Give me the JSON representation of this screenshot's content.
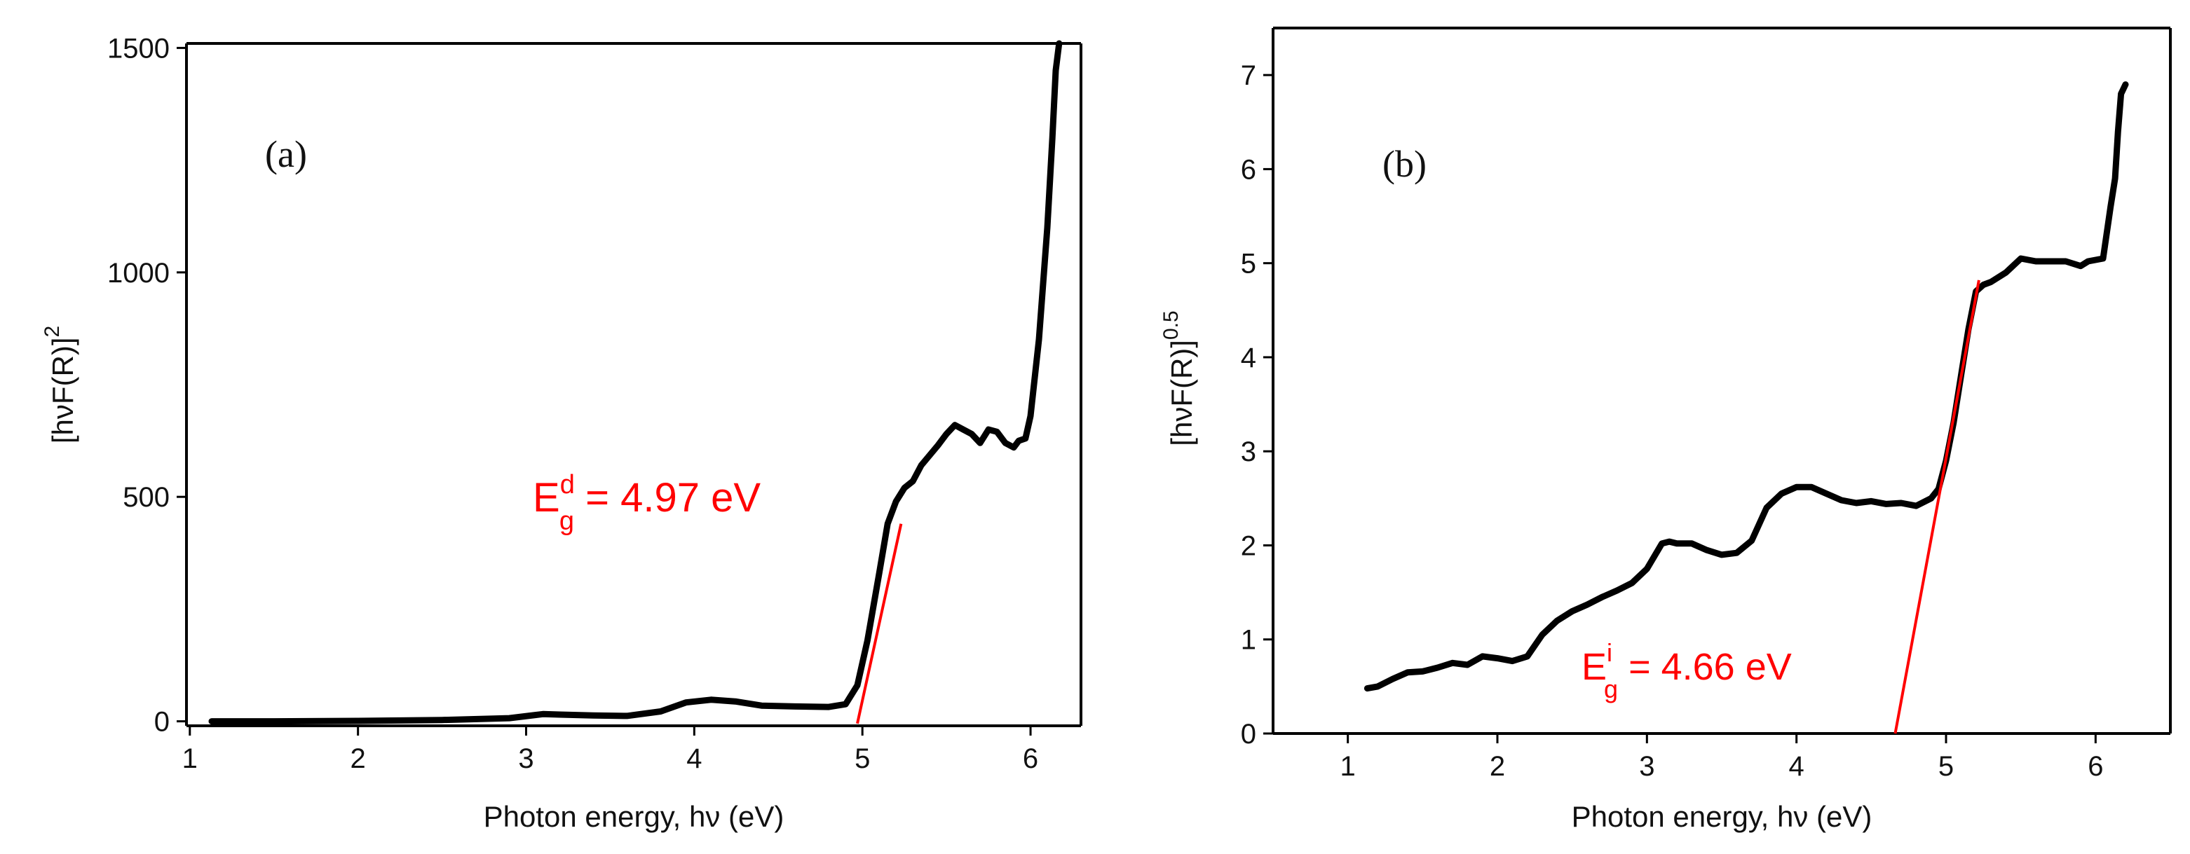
{
  "chart_data": [
    {
      "type": "line",
      "panel_label": "(a)",
      "xlabel": "Photon energy, hν (eV)",
      "ylabel_base": "[hνF(R)]",
      "ylabel_exp": "2",
      "xlim": [
        0.98,
        6.3
      ],
      "ylim": [
        -10,
        1510
      ],
      "xticks": [
        1,
        2,
        3,
        4,
        5,
        6
      ],
      "yticks": [
        0,
        500,
        1000,
        1500
      ],
      "series": [
        {
          "name": "[hνF(R)]^2",
          "x": [
            1.13,
            1.5,
            2.0,
            2.5,
            2.9,
            3.1,
            3.2,
            3.4,
            3.6,
            3.8,
            3.95,
            4.1,
            4.25,
            4.4,
            4.6,
            4.8,
            4.9,
            4.97,
            5.03,
            5.1,
            5.15,
            5.2,
            5.25,
            5.3,
            5.35,
            5.45,
            5.5,
            5.55,
            5.6,
            5.65,
            5.7,
            5.75,
            5.8,
            5.85,
            5.9,
            5.93,
            5.97,
            6.0,
            6.05,
            6.1,
            6.13,
            6.15,
            6.17
          ],
          "y": [
            0,
            0,
            1,
            3,
            7,
            16,
            15,
            13,
            12,
            22,
            42,
            48,
            44,
            35,
            33,
            32,
            38,
            80,
            180,
            330,
            440,
            490,
            520,
            535,
            570,
            615,
            640,
            660,
            650,
            640,
            620,
            650,
            645,
            620,
            610,
            625,
            630,
            680,
            850,
            1100,
            1300,
            1450,
            1510
          ]
        }
      ],
      "fit_line": {
        "x": [
          4.97,
          5.23
        ],
        "y": [
          -5,
          440
        ]
      },
      "annotation": {
        "main": "E",
        "sup": "d",
        "sub": "g",
        "rest": " = 4.97 eV"
      }
    },
    {
      "type": "line",
      "panel_label": "(b)",
      "xlabel": "Photon energy, hν (eV)",
      "ylabel_base": "[hνF(R)]",
      "ylabel_exp": "0.5",
      "xlim": [
        0.5,
        6.5
      ],
      "ylim": [
        0,
        7.5
      ],
      "xticks": [
        1,
        2,
        3,
        4,
        5,
        6
      ],
      "yticks": [
        0,
        1,
        2,
        3,
        4,
        5,
        6,
        7
      ],
      "series": [
        {
          "name": "[hνF(R)]^0.5",
          "x": [
            1.13,
            1.2,
            1.3,
            1.4,
            1.5,
            1.6,
            1.7,
            1.8,
            1.9,
            2.0,
            2.1,
            2.2,
            2.3,
            2.4,
            2.5,
            2.6,
            2.7,
            2.8,
            2.9,
            3.0,
            3.1,
            3.15,
            3.2,
            3.3,
            3.4,
            3.5,
            3.6,
            3.7,
            3.8,
            3.9,
            4.0,
            4.1,
            4.2,
            4.3,
            4.4,
            4.5,
            4.6,
            4.7,
            4.8,
            4.9,
            4.95,
            5.0,
            5.05,
            5.1,
            5.15,
            5.2,
            5.25,
            5.3,
            5.4,
            5.5,
            5.6,
            5.7,
            5.8,
            5.9,
            5.95,
            6.05,
            6.1,
            6.13,
            6.15,
            6.17,
            6.2
          ],
          "y": [
            0.48,
            0.5,
            0.58,
            0.65,
            0.66,
            0.7,
            0.75,
            0.73,
            0.82,
            0.8,
            0.77,
            0.82,
            1.05,
            1.2,
            1.3,
            1.37,
            1.45,
            1.52,
            1.6,
            1.75,
            2.02,
            2.04,
            2.02,
            2.02,
            1.95,
            1.9,
            1.92,
            2.05,
            2.4,
            2.55,
            2.62,
            2.62,
            2.55,
            2.48,
            2.45,
            2.47,
            2.44,
            2.45,
            2.42,
            2.5,
            2.6,
            2.9,
            3.3,
            3.8,
            4.3,
            4.7,
            4.77,
            4.8,
            4.9,
            5.05,
            5.02,
            5.02,
            5.02,
            4.97,
            5.02,
            5.05,
            5.6,
            5.9,
            6.4,
            6.8,
            6.9
          ]
        }
      ],
      "fit_line": {
        "x": [
          4.66,
          5.22
        ],
        "y": [
          0,
          4.82
        ]
      },
      "annotation": {
        "main": "E",
        "sup": "i",
        "sub": "g",
        "rest": " = 4.66 eV"
      }
    }
  ]
}
